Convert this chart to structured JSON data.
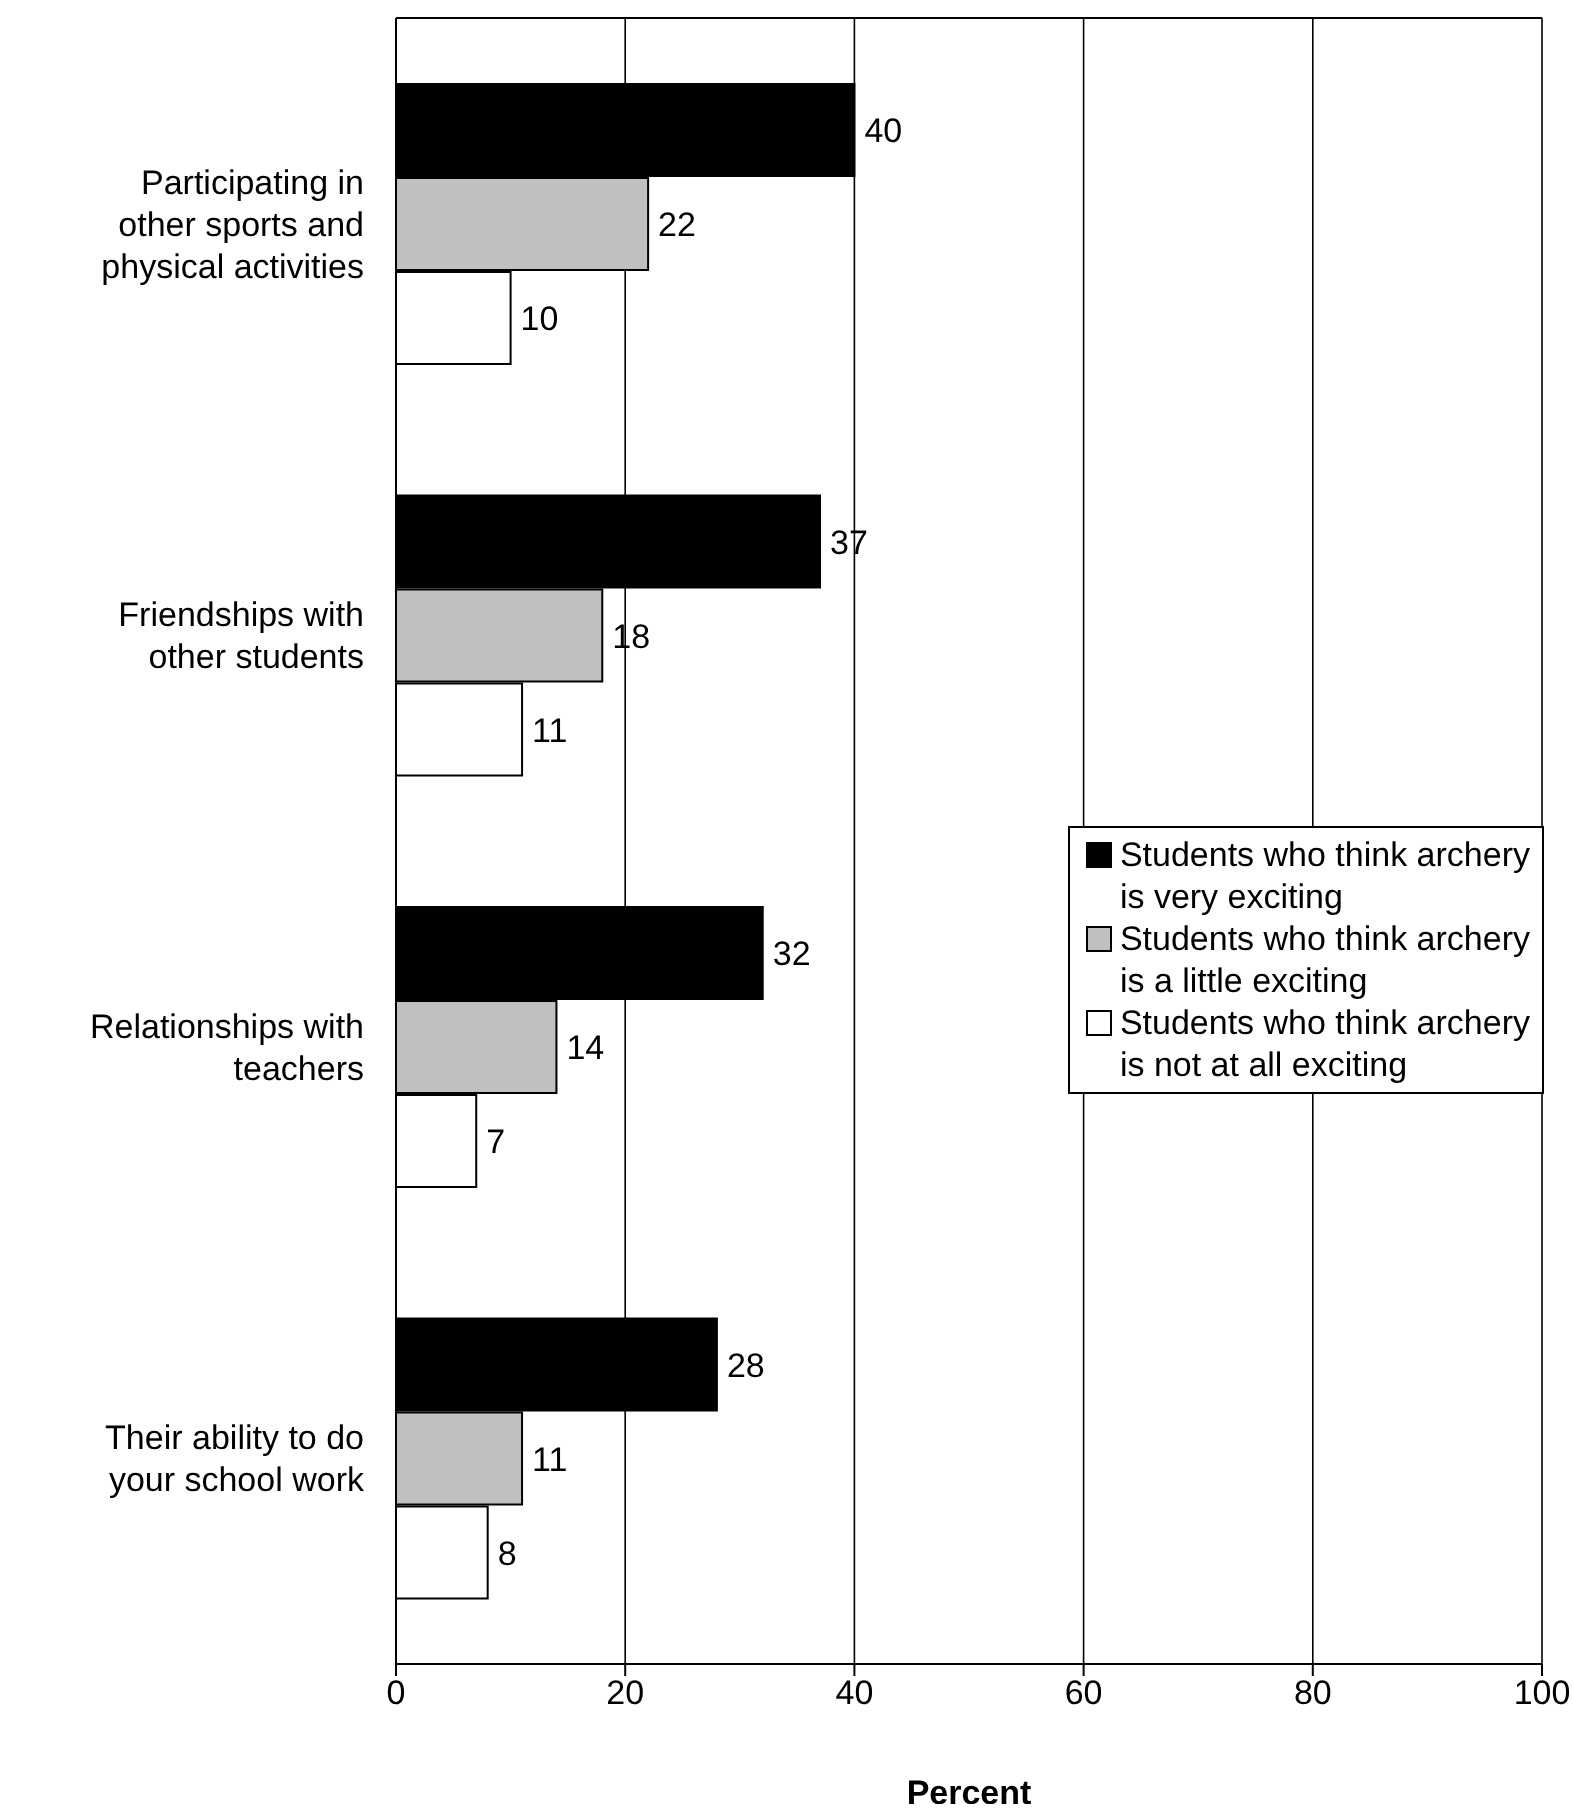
{
  "chart_data": {
    "type": "bar",
    "orientation": "horizontal",
    "xlabel": "Percent",
    "categories": [
      "Participating in other sports and physical activities",
      "Friendships with other students",
      "Relationships with teachers",
      "Their ability to do your school work"
    ],
    "series": [
      {
        "name": "Students who think archery is very exciting",
        "color": "#000000",
        "values": [
          40,
          37,
          32,
          28
        ]
      },
      {
        "name": "Students who think archery is a little exciting",
        "color": "#c0c0c0",
        "values": [
          22,
          18,
          14,
          11
        ]
      },
      {
        "name": "Students who think archery is not at all exciting",
        "color": "#ffffff",
        "values": [
          10,
          11,
          7,
          8
        ]
      }
    ],
    "xlim": [
      0,
      100
    ],
    "xticks": [
      0,
      20,
      40,
      60,
      80,
      100
    ],
    "grid": "x",
    "legend": "right",
    "data_labels": true
  }
}
